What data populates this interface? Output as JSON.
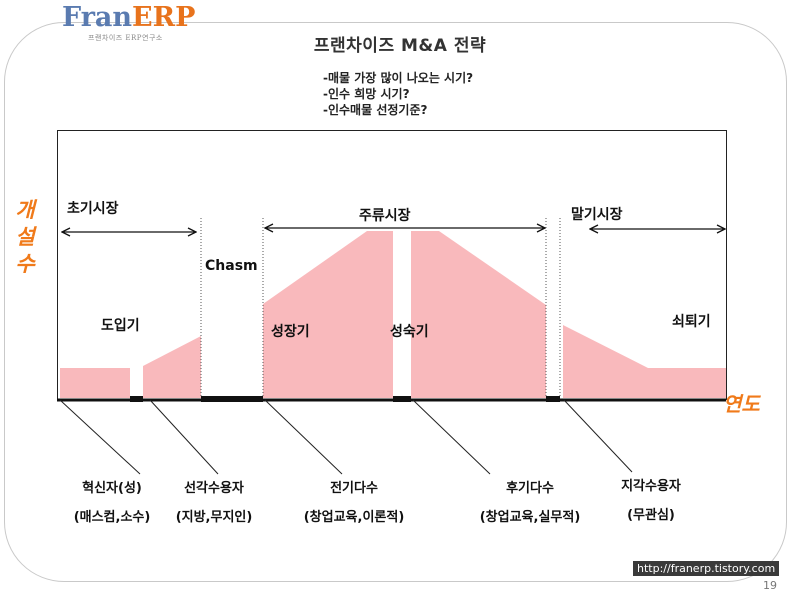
{
  "logo": {
    "brand_a": "Fran",
    "brand_b": "ERP",
    "tagline": "프랜차이즈 ERP연구소"
  },
  "title": "프랜차이즈 M&A 전략",
  "questions": [
    "-매물 가장 많이 나오는 시기?",
    "-인수 희망 시기?",
    "-인수매물 선정기준?"
  ],
  "y_axis_label": [
    "개",
    "설",
    "수"
  ],
  "x_axis_label": "연도",
  "markets": {
    "early": "초기시장",
    "main": "주류시장",
    "late": "말기시장"
  },
  "stages": {
    "introduction": "도입기",
    "chasm": "Chasm",
    "growth": "성장기",
    "maturity": "성숙기",
    "decline": "쇠퇴기"
  },
  "adopters": [
    {
      "name": "혁신자(성)",
      "desc": "(매스컴,소수)"
    },
    {
      "name": "선각수용자",
      "desc": "(지방,무지인)"
    },
    {
      "name": "전기다수",
      "desc": "(창업교육,이론적)"
    },
    {
      "name": "후기다수",
      "desc": "(창업교육,실무적)"
    },
    {
      "name": "지각수용자",
      "desc": "(무관심)"
    }
  ],
  "footer": {
    "url": "http://franerp.tistory.com",
    "page": "19"
  },
  "colors": {
    "fill": "#f9b9bc",
    "accent": "#f07a1a"
  }
}
